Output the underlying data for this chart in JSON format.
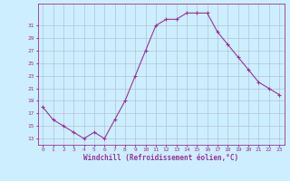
{
  "hours": [
    0,
    1,
    2,
    3,
    4,
    5,
    6,
    7,
    8,
    9,
    10,
    11,
    12,
    13,
    14,
    15,
    16,
    17,
    18,
    19,
    20,
    21,
    22,
    23
  ],
  "values": [
    18,
    16,
    15,
    14,
    13,
    14,
    13,
    16,
    19,
    23,
    27,
    31,
    32,
    32,
    33,
    33,
    33,
    30,
    28,
    26,
    24,
    22,
    21,
    20
  ],
  "line_color": "#993399",
  "marker_color": "#993399",
  "bg_color": "#cceeff",
  "grid_color": "#aabbcc",
  "xlabel": "Windchill (Refroidissement éolien,°C)",
  "xlabel_color": "#993399",
  "ylabel_ticks": [
    13,
    15,
    17,
    19,
    21,
    23,
    25,
    27,
    29,
    31
  ],
  "ylim": [
    12.0,
    34.5
  ],
  "xlim": [
    -0.5,
    23.5
  ],
  "tick_color": "#993399",
  "spine_color": "#993399",
  "figsize": [
    3.2,
    2.0
  ],
  "dpi": 100
}
